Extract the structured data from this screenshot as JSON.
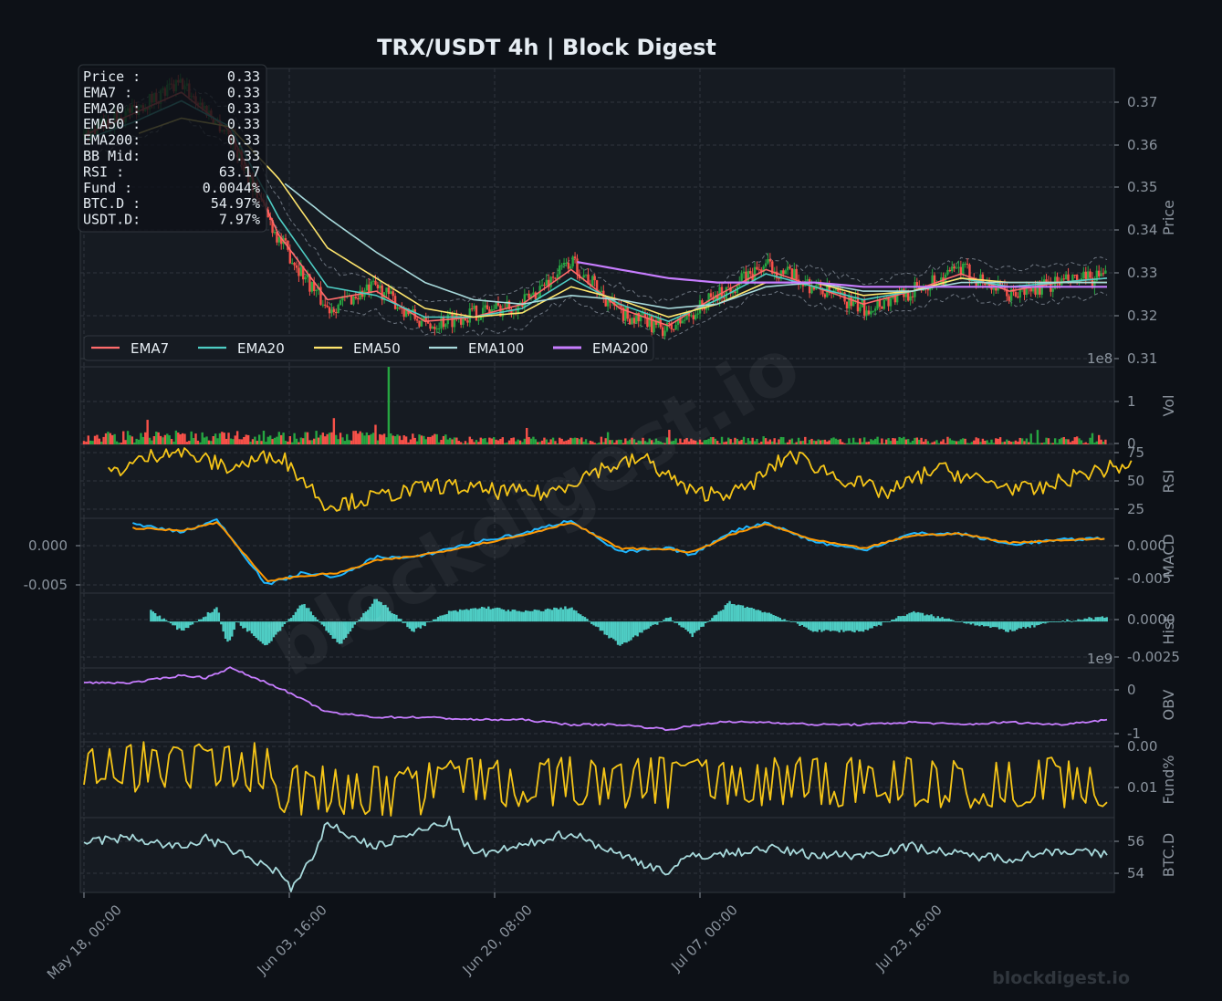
{
  "title": "TRX/USDT  4h  |  Block Digest",
  "watermark": "blockdigest.io",
  "footer_brand": "blockdigest.io",
  "colors": {
    "background": "#0d1117",
    "panel": "#161b22",
    "grid": "#30363d",
    "text": "#e6edf3",
    "axis_text": "#8b949e",
    "up": "#26a641",
    "down": "#f85149",
    "ema7": "#ff6b6b",
    "ema20": "#4ecdc4",
    "ema50": "#ffe66d",
    "ema100": "#a8dadc",
    "ema200": "#c77dff",
    "rsi": "#f5c518",
    "macd": "#1fb6ff",
    "signal": "#ff9800",
    "hist": "#4ecdc4",
    "obv": "#c77dff",
    "funding": "#f5c518",
    "btcd": "#a8dadc"
  },
  "info_box": [
    {
      "label": "Price :",
      "value": "0.33"
    },
    {
      "label": "EMA7  :",
      "value": "0.33"
    },
    {
      "label": "EMA20 :",
      "value": "0.33"
    },
    {
      "label": "EMA50 :",
      "value": "0.33"
    },
    {
      "label": "EMA200:",
      "value": "0.33"
    },
    {
      "label": "BB Mid:",
      "value": "0.33"
    },
    {
      "label": "RSI   :",
      "value": "63.17"
    },
    {
      "label": "Fund  :",
      "value": "0.0044%"
    },
    {
      "label": "BTC.D :",
      "value": "54.97%"
    },
    {
      "label": "USDT.D:",
      "value": "7.97%"
    }
  ],
  "legend": [
    "EMA7",
    "EMA20",
    "EMA50",
    "EMA100",
    "EMA200"
  ],
  "x_ticks": [
    "May 18, 00:00",
    "Jun 03, 16:00",
    "Jun 20, 08:00",
    "Jul 07, 00:00",
    "Jul 23, 16:00"
  ],
  "chart_data": {
    "type": "line",
    "title": "TRX/USDT  4h  |  Block Digest",
    "x_range": [
      "May 18, 00:00",
      "Aug 07, 16:00"
    ],
    "x_ticks": [
      "May 18, 00:00",
      "Jun 03, 16:00",
      "Jun 20, 08:00",
      "Jul 07, 00:00",
      "Jul 23, 16:00"
    ],
    "panels": [
      {
        "name": "price",
        "ylabel": "Price",
        "ylim": [
          0.3085,
          0.3775
        ],
        "yticks": [
          "0.31",
          "0.32",
          "0.33",
          "0.34",
          "0.35",
          "0.36",
          "0.37"
        ],
        "x": [
          0,
          4,
          8,
          12,
          16,
          20,
          24,
          28,
          32,
          36,
          40,
          44,
          48,
          52,
          56,
          60,
          64,
          68,
          72,
          76,
          80,
          84
        ],
        "close_path": [
          0.362,
          0.368,
          0.374,
          0.362,
          0.338,
          0.322,
          0.327,
          0.318,
          0.321,
          0.323,
          0.333,
          0.321,
          0.317,
          0.325,
          0.332,
          0.327,
          0.322,
          0.326,
          0.331,
          0.325,
          0.328,
          0.329
        ],
        "series": [
          {
            "name": "EMA7",
            "values": [
              0.362,
              0.367,
              0.372,
              0.363,
              0.339,
              0.324,
              0.326,
              0.319,
              0.32,
              0.323,
              0.331,
              0.322,
              0.318,
              0.325,
              0.331,
              0.327,
              0.323,
              0.326,
              0.33,
              0.326,
              0.328,
              0.329
            ]
          },
          {
            "name": "EMA20",
            "values": [
              0.361,
              0.365,
              0.37,
              0.364,
              0.343,
              0.327,
              0.325,
              0.32,
              0.32,
              0.322,
              0.329,
              0.323,
              0.319,
              0.324,
              0.33,
              0.327,
              0.324,
              0.326,
              0.329,
              0.327,
              0.328,
              0.329
            ]
          },
          {
            "name": "EMA50",
            "values": [
              null,
              0.362,
              0.366,
              0.364,
              0.352,
              0.336,
              0.329,
              0.322,
              0.32,
              0.321,
              0.327,
              0.324,
              0.32,
              0.323,
              0.328,
              0.328,
              0.325,
              0.326,
              0.329,
              0.328,
              0.328,
              0.328
            ]
          },
          {
            "name": "EMA100",
            "values": [
              null,
              null,
              null,
              null,
              0.352,
              0.343,
              0.335,
              0.328,
              0.324,
              0.323,
              0.325,
              0.324,
              0.322,
              0.323,
              0.327,
              0.328,
              0.326,
              0.326,
              0.328,
              0.328,
              0.328,
              0.328
            ]
          },
          {
            "name": "EMA200",
            "values": [
              null,
              null,
              null,
              null,
              null,
              null,
              null,
              null,
              null,
              null,
              0.333,
              0.331,
              0.329,
              0.328,
              0.328,
              0.328,
              0.327,
              0.327,
              0.327,
              0.327,
              0.327,
              0.327
            ]
          }
        ],
        "bb": {
          "upper_offset": 0.004,
          "lower_offset": 0.004
        }
      },
      {
        "name": "volume",
        "ylabel": "Vol",
        "ylim": [
          0,
          140000000
        ],
        "yticks": [
          "0",
          "1"
        ],
        "scale_note": "1e8",
        "peak": 170000000
      },
      {
        "name": "rsi",
        "ylabel": "RSI",
        "ylim": [
          17,
          80
        ],
        "yticks": [
          "25",
          "50",
          "75"
        ],
        "x": [
          0,
          5,
          10,
          14,
          18,
          22,
          27,
          32,
          36,
          40,
          44,
          48,
          52,
          56,
          60,
          64,
          68,
          72,
          76,
          80,
          84
        ],
        "values": [
          55,
          76,
          60,
          72,
          28,
          35,
          45,
          40,
          38,
          58,
          68,
          38,
          40,
          72,
          52,
          38,
          60,
          48,
          40,
          55,
          63
        ]
      },
      {
        "name": "macd",
        "ylabel": "MACD",
        "ylim": [
          -0.0065,
          0.0027
        ],
        "yticks": [
          "0.000",
          "-0.005"
        ],
        "x": [
          4,
          8,
          11,
          15,
          18,
          21,
          24,
          27,
          30,
          33,
          36,
          40,
          44,
          48,
          50,
          53,
          56,
          60,
          64,
          68,
          72,
          76,
          80,
          84
        ],
        "series": [
          {
            "name": "MACD",
            "values": [
              0.002,
              0.001,
              0.0025,
              -0.0055,
              -0.004,
              -0.0045,
              -0.002,
              -0.0022,
              -0.001,
              0.0,
              0.0008,
              0.0025,
              -0.0015,
              -0.001,
              -0.0018,
              0.001,
              0.0022,
              -0.0002,
              -0.0012,
              0.0008,
              0.0008,
              -0.0005,
              0.0,
              0.0003
            ]
          },
          {
            "name": "Signal",
            "values": [
              0.0015,
              0.0012,
              0.0022,
              -0.005,
              -0.0044,
              -0.004,
              -0.0025,
              -0.002,
              -0.0012,
              -0.0003,
              0.0006,
              0.0022,
              -0.001,
              -0.0011,
              -0.0015,
              0.0006,
              0.002,
              0.0,
              -0.001,
              0.0006,
              0.0008,
              -0.0003,
              0.0,
              0.0002
            ]
          }
        ]
      },
      {
        "name": "hist",
        "ylabel": "Hist",
        "ylim": [
          -0.0031,
          0.0019
        ],
        "yticks": [
          "0.0000",
          "-0.0025"
        ],
        "x_start": 5.5
      },
      {
        "name": "obv",
        "ylabel": "OBV",
        "ylim": [
          -1200000000,
          300000000
        ],
        "yticks": [
          "0",
          "-1"
        ],
        "scale_note": "1e9",
        "x": [
          0,
          4,
          8,
          10,
          12,
          16,
          20,
          24,
          28,
          32,
          36,
          40,
          44,
          48,
          52,
          56,
          60,
          64,
          68,
          72,
          76,
          80,
          84
        ],
        "values": [
          0,
          0,
          150000000,
          100000000,
          300000000,
          -100000000,
          -600000000,
          -700000000,
          -700000000,
          -750000000,
          -750000000,
          -850000000,
          -850000000,
          -950000000,
          -800000000,
          -800000000,
          -850000000,
          -850000000,
          -800000000,
          -850000000,
          -800000000,
          -850000000,
          -750000000
        ]
      },
      {
        "name": "funding",
        "ylabel": "Fund%",
        "ylim": [
          -0.0072,
          0.0105
        ],
        "yticks": [
          "0.01",
          "0.00"
        ]
      },
      {
        "name": "btcd",
        "ylabel": "BTC.D",
        "ylim": [
          52.8,
          57.2
        ],
        "yticks": [
          "56",
          "54"
        ],
        "x": [
          0,
          4,
          8,
          10,
          13,
          16,
          17,
          19,
          20,
          22,
          24,
          28,
          30,
          32,
          36,
          38,
          40,
          44,
          48,
          50,
          52,
          56,
          60,
          64,
          68,
          72,
          76,
          80,
          84
        ],
        "values": [
          55.8,
          56.0,
          55.4,
          56.0,
          55.0,
          54.0,
          53.0,
          55.0,
          57.0,
          56.0,
          55.5,
          56.5,
          57.0,
          55.0,
          55.5,
          56.0,
          56.3,
          55.0,
          54.0,
          55.0,
          55.0,
          55.4,
          55.0,
          55.0,
          55.5,
          55.0,
          54.8,
          55.3,
          55.0
        ]
      }
    ]
  }
}
